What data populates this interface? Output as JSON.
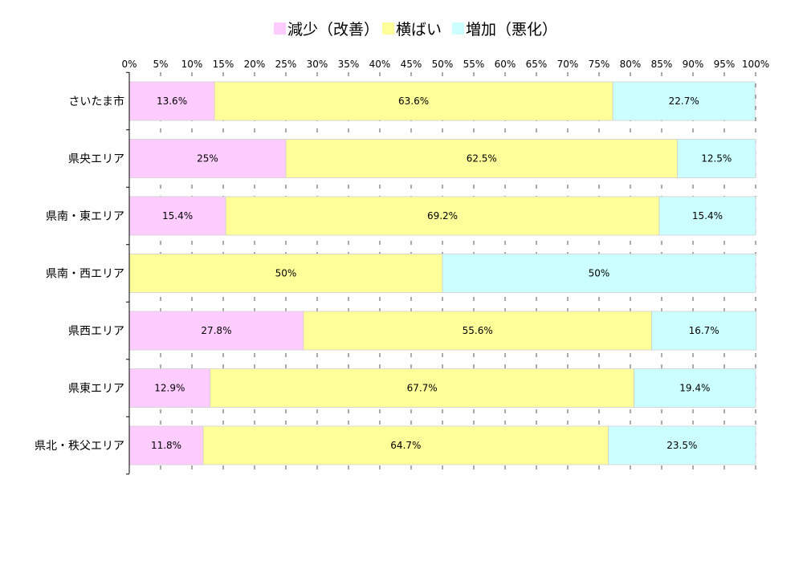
{
  "chart_data": {
    "type": "bar",
    "orientation": "horizontal",
    "stacked": true,
    "title": "",
    "xlabel": "",
    "ylabel": "",
    "xlim": [
      0,
      100
    ],
    "x_ticks": [
      "0%",
      "5%",
      "10%",
      "15%",
      "20%",
      "25%",
      "30%",
      "35%",
      "40%",
      "45%",
      "50%",
      "55%",
      "60%",
      "65%",
      "70%",
      "75%",
      "80%",
      "85%",
      "90%",
      "95%",
      "100%"
    ],
    "x_tick_values": [
      0,
      5,
      10,
      15,
      20,
      25,
      30,
      35,
      40,
      45,
      50,
      55,
      60,
      65,
      70,
      75,
      80,
      85,
      90,
      95,
      100
    ],
    "grid": true,
    "legend_position": "top",
    "categories": [
      "さいたま市",
      "県央エリア",
      "県南・東エリア",
      "県南・西エリア",
      "県西エリア",
      "県東エリア",
      "県北・秩父エリア"
    ],
    "series": [
      {
        "name": "減少（改善）",
        "color": "#ffccff",
        "values": [
          13.6,
          25,
          15.4,
          0,
          27.8,
          12.9,
          11.8
        ],
        "labels": [
          "13.6%",
          "25%",
          "15.4%",
          "",
          "27.8%",
          "12.9%",
          "11.8%"
        ]
      },
      {
        "name": "横ばい",
        "color": "#ffff99",
        "values": [
          63.6,
          62.5,
          69.2,
          50,
          55.6,
          67.7,
          64.7
        ],
        "labels": [
          "63.6%",
          "62.5%",
          "69.2%",
          "50%",
          "55.6%",
          "67.7%",
          "64.7%"
        ]
      },
      {
        "name": "増加（悪化）",
        "color": "#ccffff",
        "values": [
          22.7,
          12.5,
          15.4,
          50,
          16.7,
          19.4,
          23.5
        ],
        "labels": [
          "22.7%",
          "12.5%",
          "15.4%",
          "50%",
          "16.7%",
          "19.4%",
          "23.5%"
        ]
      }
    ]
  }
}
